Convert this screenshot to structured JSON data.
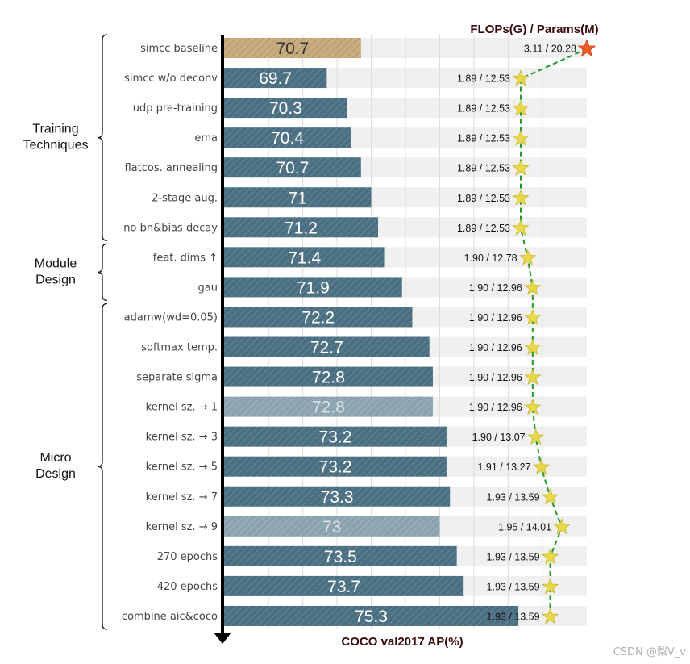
{
  "chart_data": {
    "type": "bar",
    "orientation": "horizontal",
    "xlabel": "COCO val2017 AP(%)",
    "secondary_title": "FLOPs(G) / Params(M)",
    "xlim": [
      66.7,
      77.3
    ],
    "categories": [
      "simcc baseline",
      "simcc w/o deconv",
      "udp pre-training",
      "ema",
      "flatcos. annealing",
      "2-stage aug.",
      "no bn&bias decay",
      "feat. dims ↑",
      "gau",
      "adamw(wd=0.05)",
      "softmax temp.",
      "separate sigma",
      "kernel sz. → 1",
      "kernel sz. → 3",
      "kernel sz. → 5",
      "kernel sz. → 7",
      "kernel sz. → 9",
      "270 epochs",
      "420 epochs",
      "combine aic&coco"
    ],
    "values": [
      70.7,
      69.7,
      70.3,
      70.4,
      70.7,
      71,
      71.2,
      71.4,
      71.9,
      72.2,
      72.7,
      72.8,
      72.8,
      73.2,
      73.2,
      73.3,
      73,
      73.5,
      73.7,
      75.3
    ],
    "value_labels": [
      "70.7",
      "69.7",
      "70.3",
      "70.4",
      "70.7",
      "71",
      "71.2",
      "71.4",
      "71.9",
      "72.2",
      "72.7",
      "72.8",
      "72.8",
      "73.2",
      "73.2",
      "73.3",
      "73",
      "73.5",
      "73.7",
      "75.3"
    ],
    "bar_styles": [
      "baseline",
      "normal",
      "normal",
      "normal",
      "normal",
      "normal",
      "normal",
      "normal",
      "normal",
      "normal",
      "normal",
      "normal",
      "faded",
      "normal",
      "normal",
      "normal",
      "faded",
      "normal",
      "normal",
      "normal"
    ],
    "flops": [
      3.11,
      1.89,
      1.89,
      1.89,
      1.89,
      1.89,
      1.89,
      1.9,
      1.9,
      1.9,
      1.9,
      1.9,
      1.9,
      1.9,
      1.91,
      1.93,
      1.95,
      1.93,
      1.93,
      1.93
    ],
    "params": [
      20.28,
      12.53,
      12.53,
      12.53,
      12.53,
      12.53,
      12.53,
      12.78,
      12.96,
      12.96,
      12.96,
      12.96,
      12.96,
      13.07,
      13.27,
      13.59,
      14.01,
      13.59,
      13.59,
      13.59
    ],
    "annotations": [
      "3.11 / 20.28",
      "1.89 / 12.53",
      "1.89 / 12.53",
      "1.89 / 12.53",
      "1.89 / 12.53",
      "1.89 / 12.53",
      "1.89 / 12.53",
      "1.90 / 12.78",
      "1.90 / 12.96",
      "1.90 / 12.96",
      "1.90 / 12.96",
      "1.90 / 12.96",
      "1.90 / 12.96",
      "1.90 / 13.07",
      "1.91 / 13.27",
      "1.93 / 13.59",
      "1.95 / 14.01",
      "1.93 / 13.59",
      "1.93 / 13.59",
      "1.93 / 13.59"
    ],
    "groups": [
      {
        "name": "Training Techniques",
        "lines": [
          "Training",
          "Techniques"
        ],
        "start": 0,
        "end": 6
      },
      {
        "name": "Module Design",
        "lines": [
          "Module",
          "Design"
        ],
        "start": 7,
        "end": 8
      },
      {
        "name": "Micro Design",
        "lines": [
          "Micro",
          "Design"
        ],
        "start": 9,
        "end": 19
      }
    ],
    "colors": {
      "bar": "#4b6f80",
      "bar_hatch": "#5f8799",
      "baseline": "#c8ad7f",
      "baseline_hatch": "#a88e62",
      "faded": "#8aa3ae",
      "faded_hatch": "#a0b5be",
      "row_bg": "#f0f0f0",
      "star": "#e8d84a",
      "star_baseline": "#f05a28",
      "line": "#1f9a2a",
      "axis": "#000000"
    }
  },
  "watermark": "CSDN @梨V_v"
}
